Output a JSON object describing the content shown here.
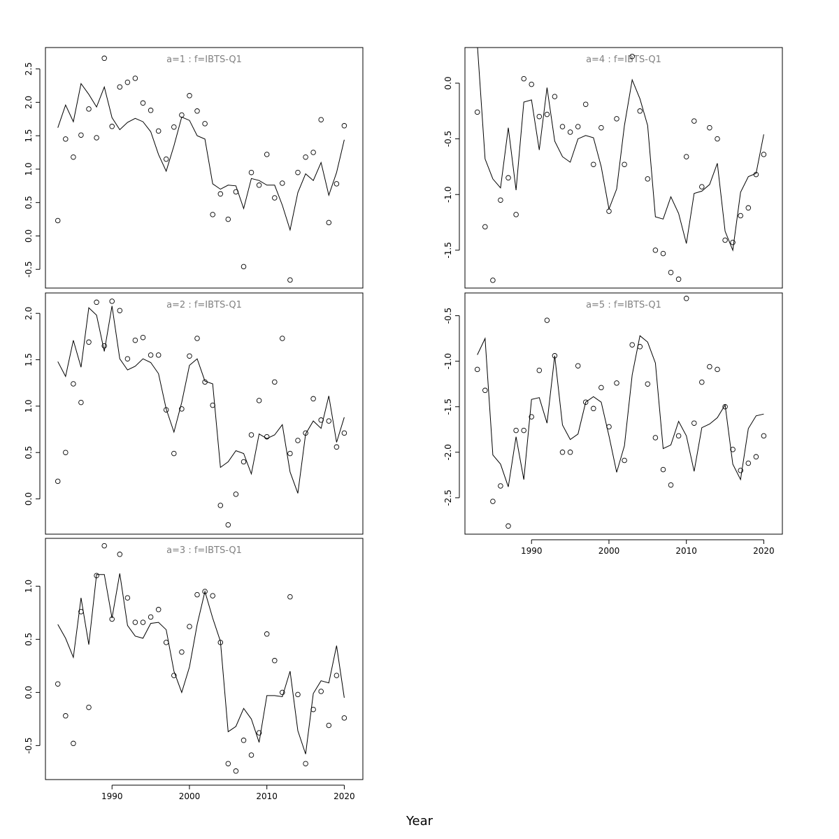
{
  "chart_data": {
    "type": "line",
    "xlabel": "Year",
    "x": [
      1983,
      1984,
      1985,
      1986,
      1987,
      1988,
      1989,
      1990,
      1991,
      1992,
      1993,
      1994,
      1995,
      1996,
      1997,
      1998,
      1999,
      2000,
      2001,
      2002,
      2003,
      2004,
      2005,
      2006,
      2007,
      2008,
      2009,
      2010,
      2011,
      2012,
      2013,
      2014,
      2015,
      2016,
      2017,
      2018,
      2019,
      2020
    ],
    "xticks": [
      1990,
      2000,
      2010,
      2020
    ],
    "panels": [
      {
        "title": "a=1 : f=IBTS-Q1",
        "ylim": [
          -0.78,
          2.82
        ],
        "yticks": [
          -0.5,
          0.0,
          0.5,
          1.0,
          1.5,
          2.0,
          2.5
        ],
        "ytick_labels": [
          "-0.5",
          "0.0",
          "0.5",
          "1.0",
          "1.5",
          "2.0",
          "2.5"
        ],
        "observed": [
          0.23,
          1.45,
          1.18,
          1.51,
          1.9,
          1.47,
          2.66,
          1.64,
          2.23,
          2.3,
          2.36,
          1.99,
          1.88,
          1.57,
          1.15,
          1.63,
          1.81,
          2.1,
          1.87,
          1.68,
          0.32,
          0.63,
          0.25,
          0.66,
          -0.46,
          0.95,
          0.76,
          1.22,
          0.57,
          0.79,
          -0.66,
          0.95,
          1.18,
          1.25,
          1.74,
          0.2,
          0.78,
          1.65
        ],
        "fitted": [
          1.62,
          1.96,
          1.71,
          2.28,
          2.12,
          1.93,
          2.23,
          1.77,
          1.59,
          1.7,
          1.76,
          1.71,
          1.56,
          1.22,
          0.97,
          1.35,
          1.78,
          1.73,
          1.5,
          1.45,
          0.78,
          0.7,
          0.76,
          0.75,
          0.41,
          0.86,
          0.83,
          0.76,
          0.76,
          0.46,
          0.09,
          0.65,
          0.93,
          0.83,
          1.1,
          0.61,
          0.95,
          1.44
        ]
      },
      {
        "title": "a=2 : f=IBTS-Q1",
        "ylim": [
          -0.38,
          2.22
        ],
        "yticks": [
          0.0,
          0.5,
          1.0,
          1.5,
          2.0
        ],
        "ytick_labels": [
          "0.0",
          "0.5",
          "1.0",
          "1.5",
          "2.0"
        ],
        "observed": [
          0.19,
          0.5,
          1.24,
          1.04,
          1.69,
          2.12,
          1.65,
          2.13,
          2.03,
          1.51,
          1.71,
          1.74,
          1.55,
          1.55,
          0.96,
          0.49,
          0.97,
          1.54,
          1.73,
          1.26,
          1.01,
          -0.07,
          -0.28,
          0.05,
          0.4,
          0.69,
          1.06,
          0.67,
          1.26,
          1.73,
          0.49,
          0.63,
          0.71,
          1.08,
          0.85,
          0.84,
          0.56,
          0.71
        ],
        "fitted": [
          1.48,
          1.32,
          1.71,
          1.42,
          2.06,
          1.98,
          1.59,
          2.08,
          1.51,
          1.39,
          1.43,
          1.51,
          1.47,
          1.35,
          0.97,
          0.72,
          1.04,
          1.44,
          1.51,
          1.27,
          1.24,
          0.34,
          0.4,
          0.52,
          0.49,
          0.27,
          0.7,
          0.65,
          0.69,
          0.8,
          0.29,
          0.06,
          0.7,
          0.84,
          0.76,
          1.11,
          0.61,
          0.88
        ]
      },
      {
        "title": "a=3 : f=IBTS-Q1",
        "ylim": [
          -0.82,
          1.45
        ],
        "yticks": [
          -0.5,
          0.0,
          0.5,
          1.0
        ],
        "ytick_labels": [
          "-0.5",
          "0.0",
          "0.5",
          "1.0"
        ],
        "observed": [
          0.08,
          -0.22,
          -0.48,
          0.76,
          -0.14,
          1.1,
          1.38,
          0.69,
          1.3,
          0.89,
          0.66,
          0.66,
          0.71,
          0.78,
          0.47,
          0.16,
          0.38,
          0.62,
          0.92,
          0.95,
          0.91,
          0.47,
          -0.67,
          -0.74,
          -0.45,
          -0.59,
          -0.38,
          0.55,
          0.3,
          0.0,
          0.9,
          -0.02,
          -0.67,
          -0.16,
          0.01,
          -0.31,
          0.16,
          -0.24
        ],
        "fitted": [
          0.64,
          0.51,
          0.33,
          0.89,
          0.45,
          1.11,
          1.11,
          0.7,
          1.12,
          0.63,
          0.53,
          0.51,
          0.65,
          0.66,
          0.59,
          0.2,
          0.0,
          0.24,
          0.64,
          0.95,
          0.7,
          0.48,
          -0.37,
          -0.32,
          -0.15,
          -0.25,
          -0.47,
          -0.03,
          -0.03,
          -0.04,
          0.2,
          -0.36,
          -0.58,
          -0.01,
          0.11,
          0.09,
          0.44,
          -0.05
        ]
      },
      {
        "title": "a=4 : f=IBTS-Q1",
        "ylim": [
          -1.84,
          0.32
        ],
        "yticks": [
          -1.5,
          -1.0,
          -0.5,
          0.0
        ],
        "ytick_labels": [
          "-1.5",
          "-1.0",
          "-0.5",
          "0.0"
        ],
        "observed": [
          -0.26,
          -1.29,
          -1.77,
          -1.05,
          -0.85,
          -1.18,
          0.04,
          -0.01,
          -0.3,
          -0.28,
          -0.12,
          -0.39,
          -0.44,
          -0.39,
          -0.19,
          -0.73,
          -0.4,
          -1.15,
          -0.32,
          -0.73,
          0.24,
          -0.25,
          -0.86,
          -1.5,
          -1.53,
          -1.7,
          -1.76,
          -0.66,
          -0.34,
          -0.93,
          -0.4,
          -0.5,
          -1.41,
          -1.43,
          -1.19,
          -1.12,
          -0.82,
          -0.64
        ],
        "fitted": [
          0.35,
          -0.68,
          -0.86,
          -0.94,
          -0.4,
          -0.96,
          -0.17,
          -0.15,
          -0.6,
          -0.04,
          -0.52,
          -0.66,
          -0.71,
          -0.5,
          -0.47,
          -0.49,
          -0.75,
          -1.13,
          -0.95,
          -0.38,
          0.03,
          -0.14,
          -0.38,
          -1.2,
          -1.22,
          -1.02,
          -1.17,
          -1.44,
          -0.99,
          -0.97,
          -0.91,
          -0.72,
          -1.33,
          -1.5,
          -0.98,
          -0.84,
          -0.81,
          -0.46
        ]
      },
      {
        "title": "a=5 : f=IBTS-Q1",
        "ylim": [
          -2.9,
          -0.25
        ],
        "yticks": [
          -2.5,
          -2.0,
          -1.5,
          -1.0,
          -0.5
        ],
        "ytick_labels": [
          "-2.5",
          "-2.0",
          "-1.5",
          "-1.0",
          "-0.5"
        ],
        "observed": [
          -1.09,
          -1.32,
          -2.54,
          -2.37,
          -2.81,
          -1.76,
          -1.76,
          -1.61,
          -1.1,
          -0.55,
          -0.94,
          -2.0,
          -2.0,
          -1.05,
          -1.45,
          -1.52,
          -1.29,
          -1.72,
          -1.24,
          -2.09,
          -0.82,
          -0.84,
          -1.25,
          -1.84,
          -2.19,
          -2.36,
          -1.82,
          -0.31,
          -1.68,
          -1.23,
          -1.06,
          -1.09,
          -1.5,
          -1.97,
          -2.2,
          -2.12,
          -2.05,
          -1.82
        ],
        "fitted": [
          -0.93,
          -0.75,
          -2.03,
          -2.13,
          -2.38,
          -1.83,
          -2.3,
          -1.42,
          -1.4,
          -1.68,
          -0.94,
          -1.7,
          -1.86,
          -1.8,
          -1.45,
          -1.39,
          -1.45,
          -1.82,
          -2.22,
          -1.93,
          -1.15,
          -0.72,
          -0.79,
          -1.02,
          -1.96,
          -1.92,
          -1.66,
          -1.82,
          -2.21,
          -1.73,
          -1.69,
          -1.62,
          -1.48,
          -2.13,
          -2.3,
          -1.74,
          -1.6,
          -1.58
        ]
      }
    ]
  }
}
